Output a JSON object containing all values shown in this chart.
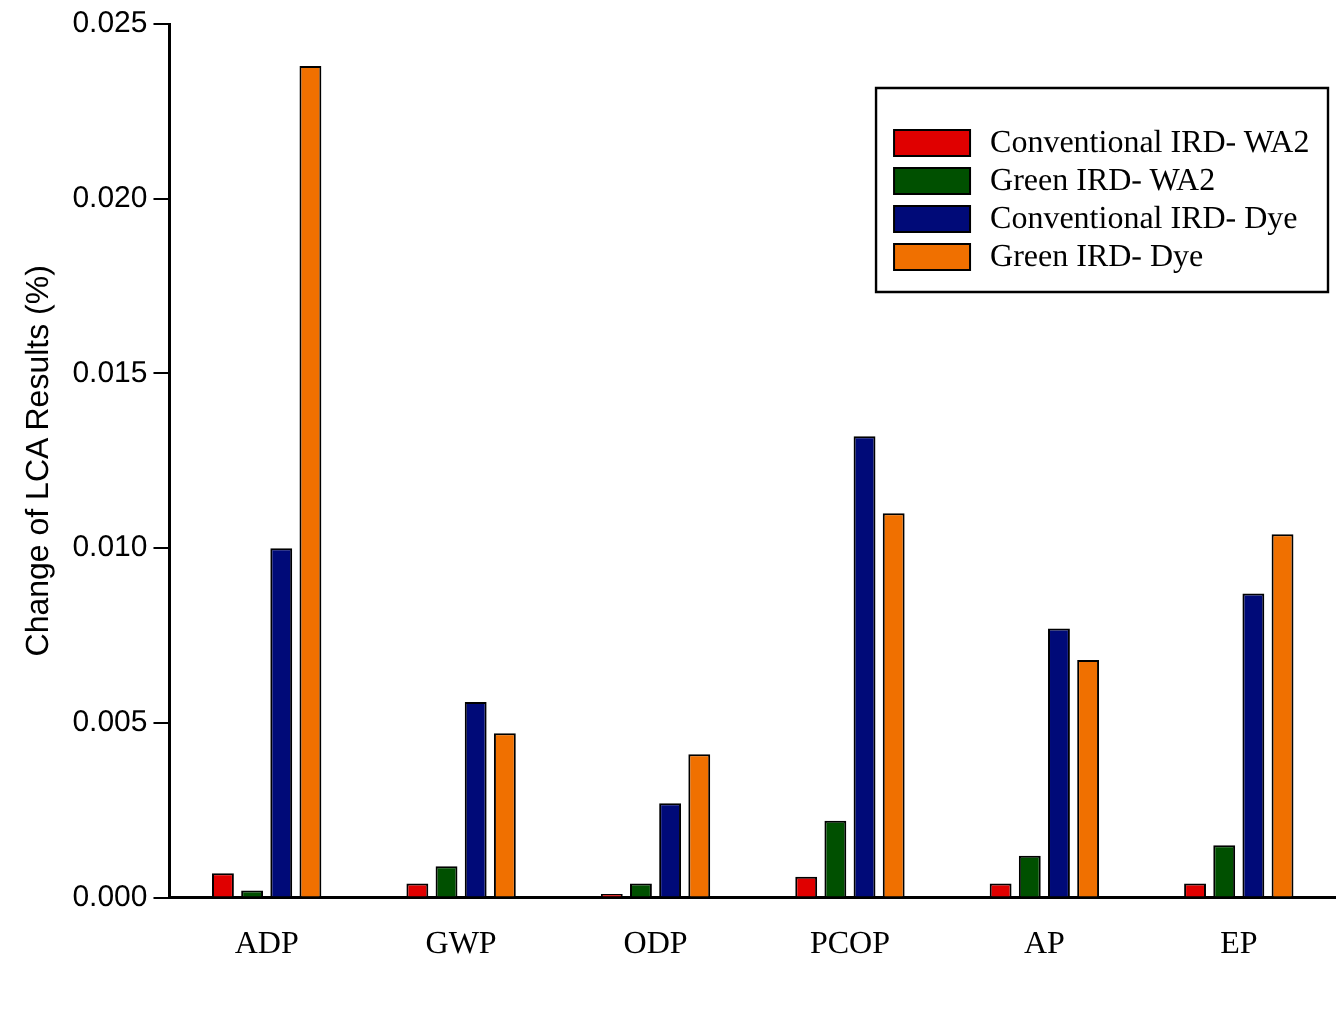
{
  "chart_data": {
    "type": "bar",
    "ylabel": "Change of LCA Results (%)",
    "categories": [
      "ADP",
      "GWP",
      "ODP",
      "PCOP",
      "AP",
      "EP"
    ],
    "series": [
      {
        "name": "Conventional IRD- WA2",
        "color": "#e00000",
        "values": [
          0.0007,
          0.0004,
          0.0001,
          0.0006,
          0.0004,
          0.0004
        ]
      },
      {
        "name": "Green IRD- WA2",
        "color": "#005000",
        "values": [
          0.0002,
          0.0009,
          0.0004,
          0.0022,
          0.0012,
          0.0015
        ]
      },
      {
        "name": "Conventional IRD- Dye",
        "color": "#000a78",
        "values": [
          0.01,
          0.0056,
          0.0027,
          0.0132,
          0.0077,
          0.0087
        ]
      },
      {
        "name": "Green IRD- Dye",
        "color": "#f07000",
        "values": [
          0.0238,
          0.0047,
          0.0041,
          0.011,
          0.0068,
          0.0104
        ]
      }
    ],
    "ylim": [
      0,
      0.025
    ],
    "yticks": [
      {
        "value": 0,
        "label": "0.000"
      },
      {
        "value": 0.005,
        "label": "0.005"
      },
      {
        "value": 0.01,
        "label": "0.010"
      },
      {
        "value": 0.015,
        "label": "0.015"
      },
      {
        "value": 0.02,
        "label": "0.020"
      },
      {
        "value": 0.025,
        "label": "0.025"
      }
    ],
    "grid": false,
    "legend": "top right"
  }
}
